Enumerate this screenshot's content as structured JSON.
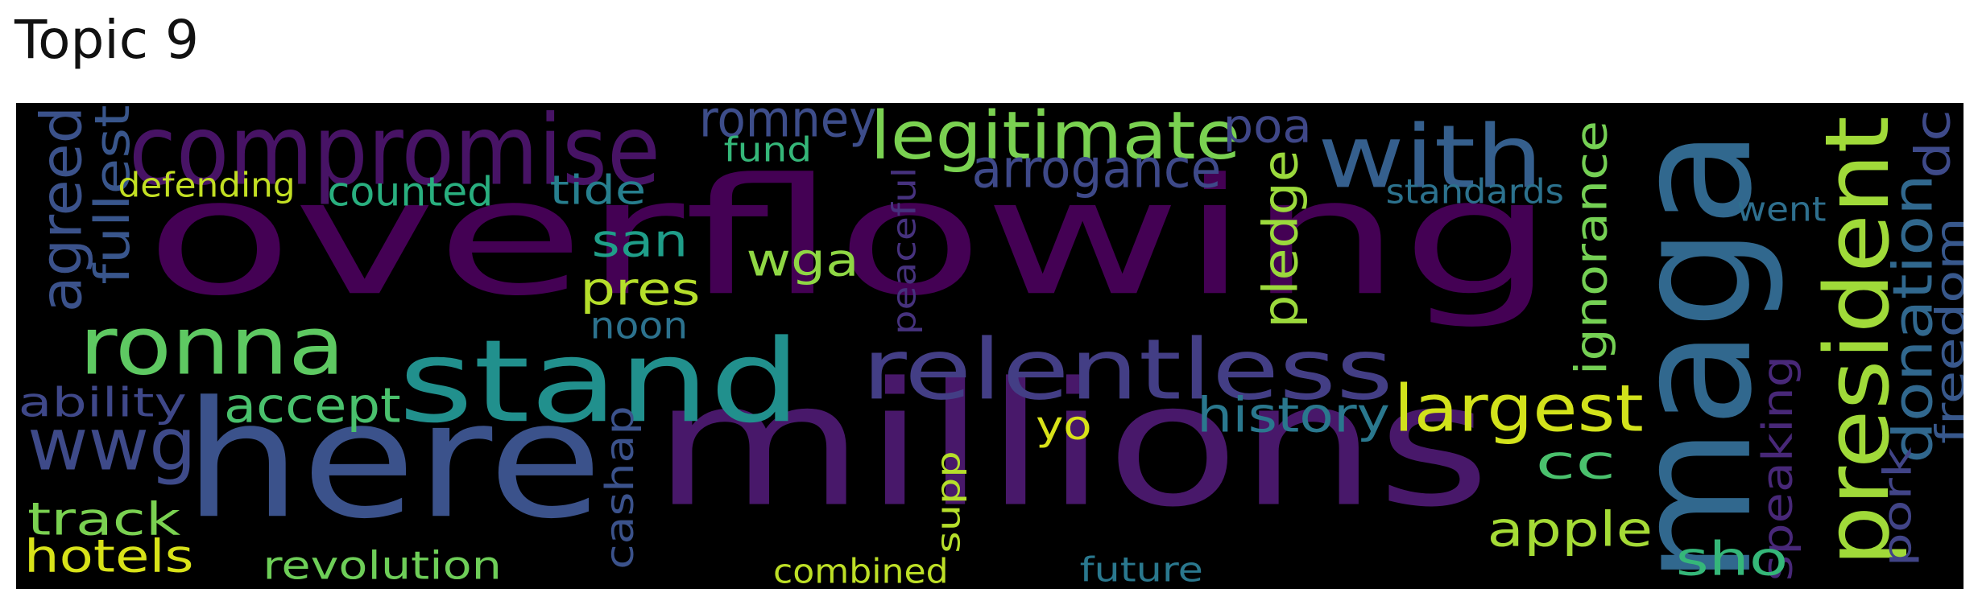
{
  "title": "Topic 9",
  "words": [
    {
      "text": "overflowing",
      "color": "#440154"
    },
    {
      "text": "millions",
      "color": "#48186a"
    },
    {
      "text": "here",
      "color": "#3b528b"
    },
    {
      "text": "maga",
      "color": "#31688e"
    },
    {
      "text": "stand",
      "color": "#21908d"
    },
    {
      "text": "compromise",
      "color": "#471365"
    },
    {
      "text": "relentless",
      "color": "#433e85"
    },
    {
      "text": "ronna",
      "color": "#5ec962"
    },
    {
      "text": "president",
      "color": "#a0da39"
    },
    {
      "text": "with",
      "color": "#355f8d"
    },
    {
      "text": "wwg",
      "color": "#3e4a89"
    },
    {
      "text": "legitimate",
      "color": "#7ad151"
    },
    {
      "text": "largest",
      "color": "#d2e21b"
    },
    {
      "text": "agreed",
      "color": "#3b528b"
    },
    {
      "text": "donation",
      "color": "#31688e"
    },
    {
      "text": "arrogance",
      "color": "#3e4989"
    },
    {
      "text": "romney",
      "color": "#3d4d8a"
    },
    {
      "text": "accept",
      "color": "#4ac16d"
    },
    {
      "text": "history",
      "color": "#2a788e"
    },
    {
      "text": "fullest",
      "color": "#39568c"
    },
    {
      "text": "ignorance",
      "color": "#75d054"
    },
    {
      "text": "pledge",
      "color": "#9bd93c"
    },
    {
      "text": "freedom",
      "color": "#38588c"
    },
    {
      "text": "apple",
      "color": "#a5db36"
    },
    {
      "text": "speaking",
      "color": "#482878"
    },
    {
      "text": "poa",
      "color": "#3f4788"
    },
    {
      "text": "track",
      "color": "#7ad151"
    },
    {
      "text": "hotels",
      "color": "#d8e219"
    },
    {
      "text": "revolution",
      "color": "#6ece58"
    },
    {
      "text": "pres",
      "color": "#b5de2b"
    },
    {
      "text": "san",
      "color": "#1f9e89"
    },
    {
      "text": "wga",
      "color": "#8fd744"
    },
    {
      "text": "cashap",
      "color": "#3b528b"
    },
    {
      "text": "sho",
      "color": "#35b779"
    },
    {
      "text": "pork",
      "color": "#414487"
    },
    {
      "text": "dc",
      "color": "#3e4a89"
    },
    {
      "text": "cc",
      "color": "#4ac16d"
    },
    {
      "text": "counted",
      "color": "#29af7f"
    },
    {
      "text": "ability",
      "color": "#3f4889"
    },
    {
      "text": "tide",
      "color": "#277f8e"
    },
    {
      "text": "defending",
      "color": "#c2df23"
    },
    {
      "text": "standards",
      "color": "#2c728e"
    },
    {
      "text": "noon",
      "color": "#2c728e"
    },
    {
      "text": "yo",
      "color": "#d8e219"
    },
    {
      "text": "went",
      "color": "#2e6f8e"
    },
    {
      "text": "fund",
      "color": "#35b779"
    },
    {
      "text": "peaceful",
      "color": "#46327e"
    },
    {
      "text": "supp",
      "color": "#b5de2b"
    },
    {
      "text": "combined",
      "color": "#bddf26"
    },
    {
      "text": "future",
      "color": "#2a788e"
    }
  ]
}
